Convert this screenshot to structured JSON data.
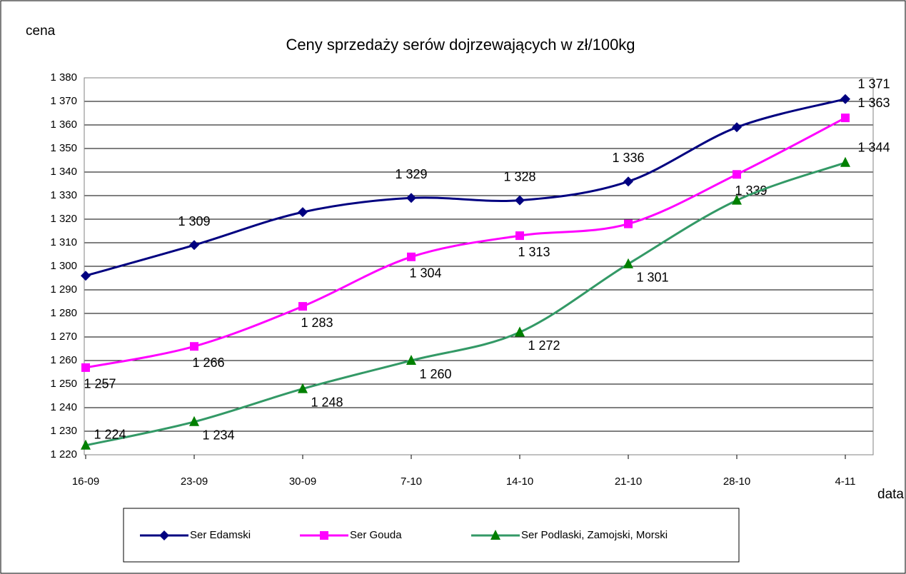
{
  "chart_data": {
    "type": "line",
    "title": "Ceny sprzedaży serów dojrzewających w zł/100kg",
    "y_label": "cena",
    "x_label": "data",
    "categories": [
      "16-09",
      "23-09",
      "30-09",
      "7-10",
      "14-10",
      "21-10",
      "28-10",
      "4-11"
    ],
    "series": [
      {
        "name": "Ser Edamski",
        "color": "#000080",
        "marker": "diamond",
        "values": [
          1296,
          1309,
          1323,
          1329,
          1328,
          1336,
          1359,
          1371
        ],
        "value_labels": [
          null,
          "1 309",
          null,
          "1 329",
          "1 328",
          "1 336",
          null,
          "1 371"
        ]
      },
      {
        "name": "Ser Gouda",
        "color": "#ff00ff",
        "marker": "square",
        "values": [
          1257,
          1266,
          1283,
          1304,
          1313,
          1318,
          1339,
          1363
        ],
        "value_labels": [
          "1 257",
          "1 266",
          "1 283",
          "1 304",
          "1 313",
          null,
          "1 339",
          "1 363"
        ]
      },
      {
        "name": "Ser Podlaski, Zamojski, Morski",
        "color": "#339966",
        "marker": "triangle",
        "values": [
          1224,
          1234,
          1248,
          1260,
          1272,
          1301,
          1328,
          1344
        ],
        "value_labels": [
          "1 224",
          "1 234",
          "1 248",
          "1 260",
          "1 272",
          "1 301",
          null,
          "1 344"
        ]
      }
    ],
    "ylim": [
      1220,
      1380
    ],
    "yticks": [
      {
        "value": 1220,
        "label": "1 220"
      },
      {
        "value": 1230,
        "label": "1 230"
      },
      {
        "value": 1240,
        "label": "1 240"
      },
      {
        "value": 1250,
        "label": "1 250"
      },
      {
        "value": 1260,
        "label": "1 260"
      },
      {
        "value": 1270,
        "label": "1 270"
      },
      {
        "value": 1280,
        "label": "1 280"
      },
      {
        "value": 1290,
        "label": "1 290"
      },
      {
        "value": 1300,
        "label": "1 300"
      },
      {
        "value": 1310,
        "label": "1 310"
      },
      {
        "value": 1320,
        "label": "1 320"
      },
      {
        "value": 1330,
        "label": "1 330"
      },
      {
        "value": 1340,
        "label": "1 340"
      },
      {
        "value": 1350,
        "label": "1 350"
      },
      {
        "value": 1360,
        "label": "1 360"
      },
      {
        "value": 1370,
        "label": "1 370"
      },
      {
        "value": 1380,
        "label": "1 380"
      }
    ],
    "grid": true,
    "legend": "bottom"
  }
}
